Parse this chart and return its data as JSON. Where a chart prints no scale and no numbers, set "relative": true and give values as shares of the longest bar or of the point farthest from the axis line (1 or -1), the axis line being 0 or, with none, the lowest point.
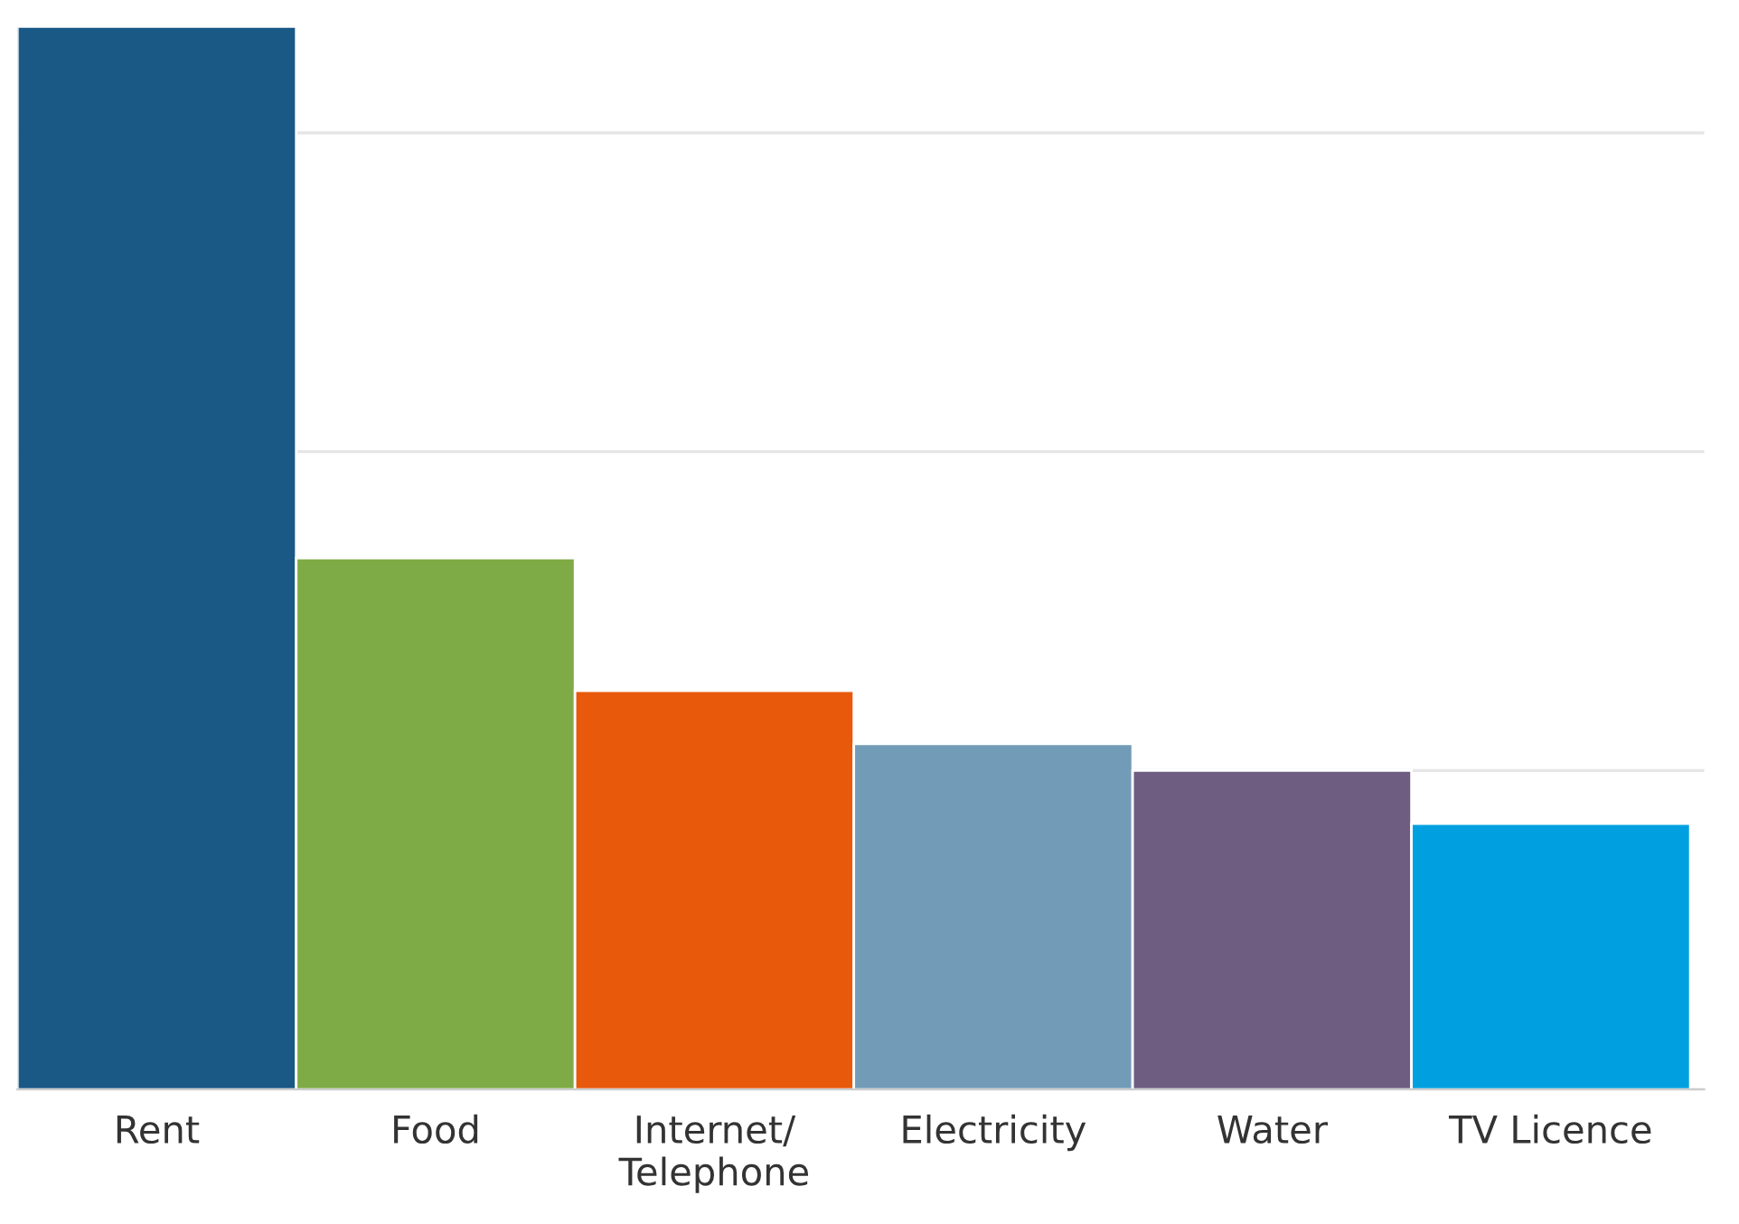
{
  "chart_data": {
    "type": "bar",
    "relative": true,
    "grid": "y",
    "categories": [
      "Rent",
      "Food",
      "Internet/Telephone",
      "Electricity",
      "Water",
      "TV Licence"
    ],
    "values": [
      1.0,
      0.5,
      0.375,
      0.325,
      0.3,
      0.25
    ],
    "colors": [
      "#1a5886",
      "#7eab45",
      "#e8590c",
      "#729bb7",
      "#6e5d80",
      "#00a0e0"
    ]
  }
}
